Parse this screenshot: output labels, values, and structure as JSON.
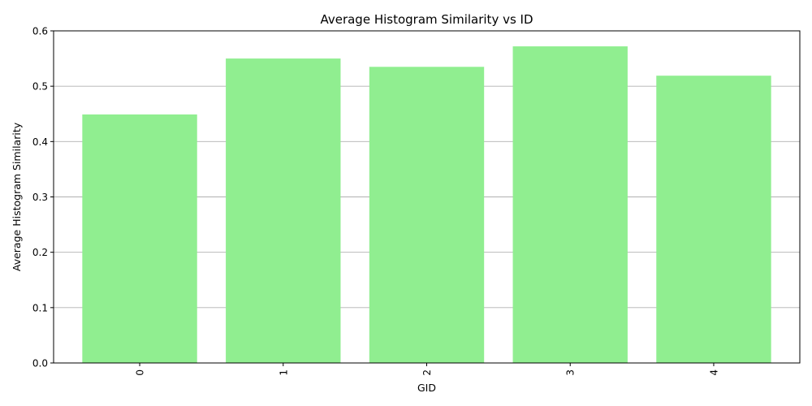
{
  "chart_data": {
    "type": "bar",
    "title": "Average Histogram Similarity vs ID",
    "xlabel": "GID",
    "ylabel": "Average Histogram Similarity",
    "categories": [
      "0",
      "1",
      "2",
      "3",
      "4"
    ],
    "values": [
      0.449,
      0.55,
      0.535,
      0.572,
      0.519
    ],
    "ylim": [
      0,
      0.6
    ],
    "yticks": [
      "0.0",
      "0.1",
      "0.2",
      "0.3",
      "0.4",
      "0.5",
      "0.6"
    ],
    "grid": "y-axis only",
    "bar_color": "#90ee90",
    "x_tick_rotation": "vertical",
    "legend": "none"
  }
}
